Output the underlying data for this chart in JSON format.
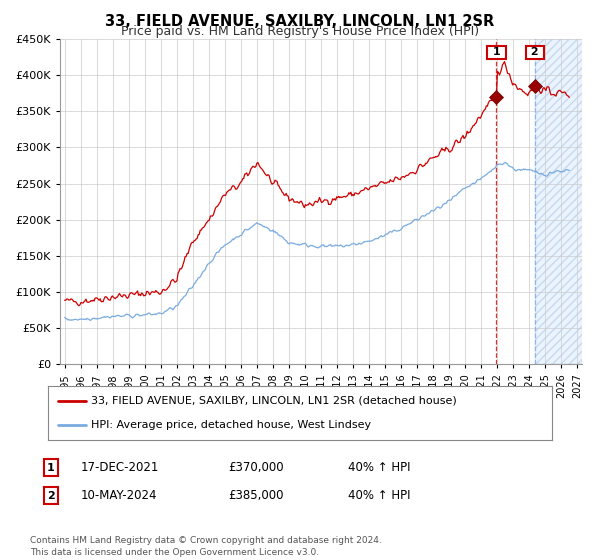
{
  "title": "33, FIELD AVENUE, SAXILBY, LINCOLN, LN1 2SR",
  "subtitle": "Price paid vs. HM Land Registry's House Price Index (HPI)",
  "title_fontsize": 10.5,
  "subtitle_fontsize": 9,
  "ylabel_red": "33, FIELD AVENUE, SAXILBY, LINCOLN, LN1 2SR (detached house)",
  "ylabel_blue": "HPI: Average price, detached house, West Lindsey",
  "annotation1_label": "1",
  "annotation1_date": "17-DEC-2021",
  "annotation1_price": "£370,000",
  "annotation1_hpi": "40% ↑ HPI",
  "annotation2_label": "2",
  "annotation2_date": "10-MAY-2024",
  "annotation2_price": "£385,000",
  "annotation2_hpi": "40% ↑ HPI",
  "footnote": "Contains HM Land Registry data © Crown copyright and database right 2024.\nThis data is licensed under the Open Government Licence v3.0.",
  "red_color": "#cc0000",
  "blue_color": "#7aabe0",
  "background_color": "#ffffff",
  "grid_color": "#cccccc",
  "shade_color": "#ddeeff",
  "marker1_year": 2021.96,
  "marker1_value": 370000,
  "marker2_year": 2024.36,
  "marker2_value": 385000,
  "xmin": 1995,
  "xmax": 2027,
  "ymin": 0,
  "ymax": 450000,
  "yticks": [
    0,
    50000,
    100000,
    150000,
    200000,
    250000,
    300000,
    350000,
    400000,
    450000
  ],
  "xticks": [
    1995,
    1996,
    1997,
    1998,
    1999,
    2000,
    2001,
    2002,
    2003,
    2004,
    2005,
    2006,
    2007,
    2008,
    2009,
    2010,
    2011,
    2012,
    2013,
    2014,
    2015,
    2016,
    2017,
    2018,
    2019,
    2020,
    2021,
    2022,
    2023,
    2024,
    2025,
    2026,
    2027
  ]
}
